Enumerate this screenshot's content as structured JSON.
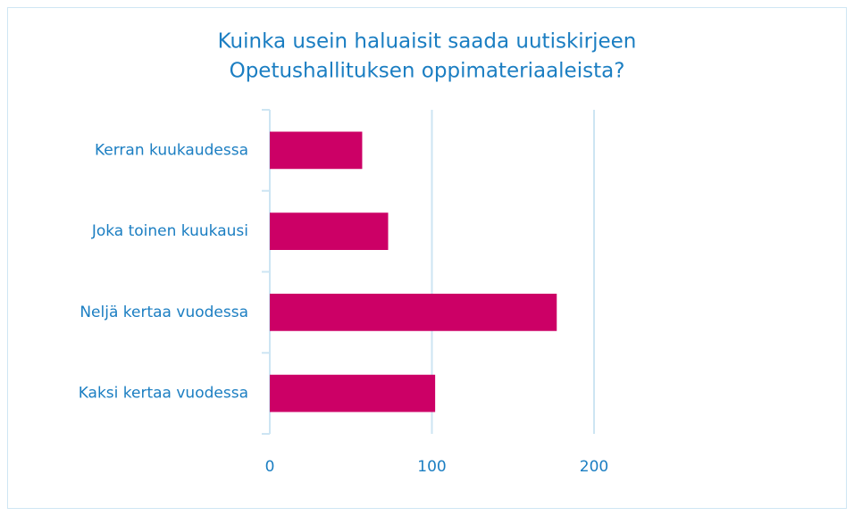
{
  "chart_data": {
    "type": "bar",
    "orientation": "horizontal",
    "title": [
      "Kuinka usein haluaisit saada uutiskirjeen",
      "Opetushallituksen oppimateriaaleista?"
    ],
    "categories": [
      "Kerran kuukaudessa",
      "Joka toinen kuukausi",
      "Neljä kertaa vuodessa",
      "Kaksi kertaa vuodessa"
    ],
    "values": [
      57,
      73,
      177,
      102
    ],
    "color": "#cc0066",
    "xlim": [
      0,
      300
    ],
    "xticks": [
      0,
      100,
      200
    ],
    "grid": true
  }
}
